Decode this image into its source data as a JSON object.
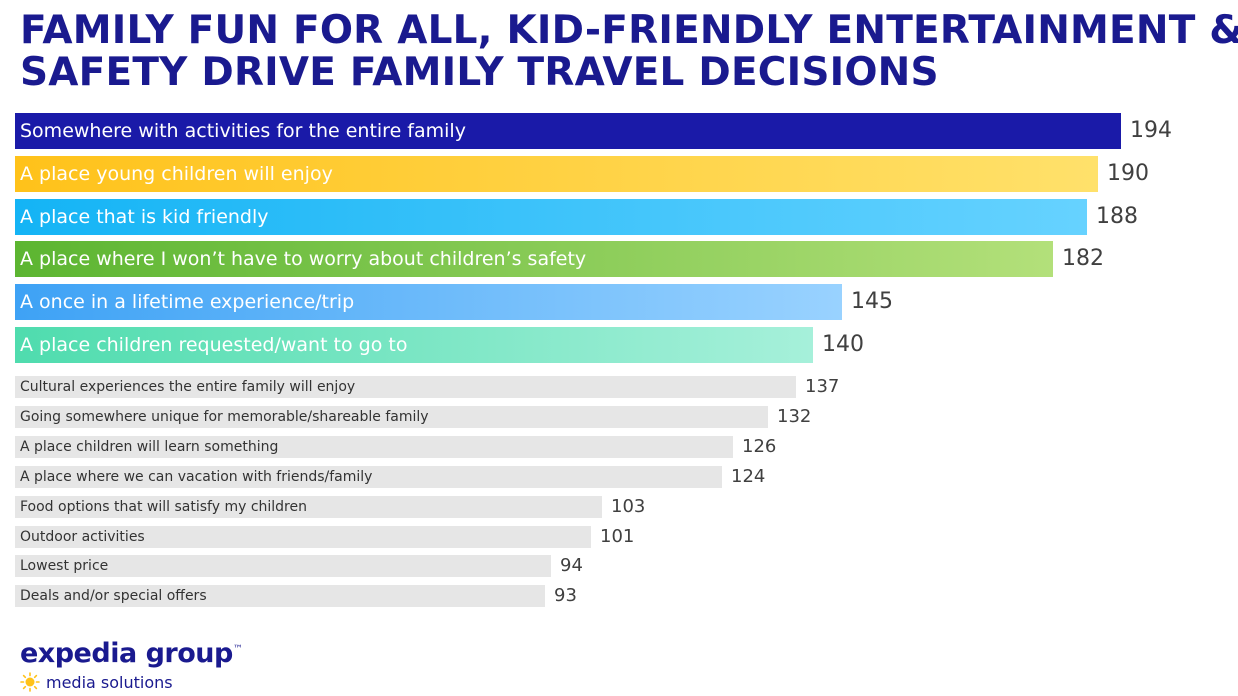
{
  "title": {
    "line1": "FAMILY FUN FOR ALL, KID-FRIENDLY ENTERTAINMENT &",
    "line2": "SAFETY DRIVE FAMILY TRAVEL DECISIONS"
  },
  "chart_data": {
    "type": "bar",
    "orientation": "horizontal",
    "title": "FAMILY FUN FOR ALL, KID-FRIENDLY ENTERTAINMENT & SAFETY DRIVE FAMILY TRAVEL DECISIONS",
    "categories": [
      "Somewhere with activities for the entire family",
      "A place young children will enjoy",
      "A place that is kid friendly",
      "A place where I won’t have to worry about children’s safety",
      "A once in a lifetime experience/trip",
      "A place children requested/want to go to",
      "Cultural experiences the entire family will enjoy",
      "Going somewhere unique for memorable/shareable family",
      "A place children will learn something",
      "A place where we can vacation with friends/family",
      "Food options that will satisfy my children",
      "Outdoor activities",
      "Lowest price",
      "Deals and/or special offers"
    ],
    "values": [
      194,
      190,
      188,
      182,
      145,
      140,
      137,
      132,
      126,
      124,
      103,
      101,
      94,
      93
    ],
    "data_labels": true,
    "colors": [
      [
        "#1a1aa8",
        "#1a1aa8"
      ],
      [
        "#ffc21a",
        "#ffe16b"
      ],
      [
        "#14b4f5",
        "#66d2ff"
      ],
      [
        "#5cb531",
        "#b3e07a"
      ],
      [
        "#3ea2f5",
        "#99d2ff"
      ],
      [
        "#4fdcae",
        "#a6f0da"
      ],
      [
        "#e6e6e6",
        "#e6e6e6"
      ]
    ],
    "grid": false,
    "legend": "none"
  },
  "logo": {
    "main": "expedia group",
    "trademark": "™",
    "sub": "media solutions",
    "icon": "lightbulb-icon",
    "accent": "#ffc21a",
    "color": "#1a1a8f"
  }
}
